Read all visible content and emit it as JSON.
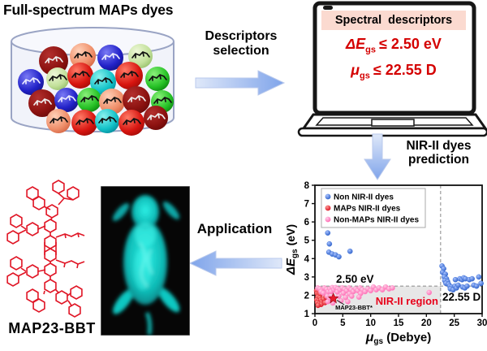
{
  "title": "Full-spectrum MAPs dyes",
  "steps": {
    "descriptors_line1": "Descriptors",
    "descriptors_line2": "selection",
    "prediction_line1": "NIR-II dyes",
    "prediction_line2": "prediction",
    "application": "Application"
  },
  "laptop": {
    "header": "Spectral descriptors",
    "criteria": [
      {
        "symbol": "ΔE",
        "sub": "gs",
        "op": "≤",
        "value": "2.50 eV"
      },
      {
        "symbol": "μ",
        "sub": "gs",
        "op": "≤",
        "value": "22.55 D"
      }
    ]
  },
  "molecule_label": "MAP23-BBT",
  "colors": {
    "accent_arrow": "#7fa4ea",
    "red_text": "#d40000",
    "nonNIR_blue": "#3a6fd8",
    "maps_red": "#e81c2c",
    "nonmaps_pink": "#ff85c2"
  },
  "chart_data": {
    "type": "scatter",
    "xlabel": {
      "main": "μ",
      "sub": "gs",
      "unit": " (Debye)"
    },
    "ylabel": {
      "main": "ΔE",
      "sub": "gs",
      "unit": " (eV)"
    },
    "xlim": [
      0,
      30
    ],
    "ylim": [
      1,
      8
    ],
    "xticks": [
      0,
      5,
      10,
      15,
      20,
      25,
      30
    ],
    "yticks": [
      1,
      2,
      3,
      4,
      5,
      6,
      7,
      8
    ],
    "grid": false,
    "legend_position": "top-left",
    "series": [
      {
        "name": "Non NIR-II dyes",
        "color": "#3a6fd8",
        "points": [
          [
            2.3,
            5.4
          ],
          [
            2.6,
            4.8
          ],
          [
            2.5,
            4.35
          ],
          [
            3.1,
            4.25
          ],
          [
            3.7,
            4.2
          ],
          [
            4.3,
            4.1
          ],
          [
            6.3,
            4.4
          ],
          [
            22.8,
            3.6
          ],
          [
            23.1,
            3.45
          ],
          [
            22.9,
            3.25
          ],
          [
            23.4,
            3.15
          ],
          [
            23.2,
            3.0
          ],
          [
            23.6,
            2.9
          ],
          [
            23.3,
            2.8
          ],
          [
            23.8,
            2.75
          ],
          [
            23.5,
            2.65
          ],
          [
            24.0,
            2.6
          ],
          [
            24.2,
            2.5
          ],
          [
            24.5,
            2.45
          ],
          [
            24.3,
            2.35
          ],
          [
            24.8,
            2.3
          ],
          [
            25.1,
            2.5
          ],
          [
            25.4,
            2.4
          ],
          [
            25.7,
            2.55
          ],
          [
            25.2,
            2.85
          ],
          [
            26.0,
            2.9
          ],
          [
            26.4,
            2.85
          ],
          [
            26.7,
            2.95
          ],
          [
            27.0,
            2.9
          ],
          [
            26.5,
            2.45
          ],
          [
            26.9,
            2.4
          ],
          [
            27.3,
            2.5
          ],
          [
            27.7,
            2.85
          ],
          [
            28.2,
            2.9
          ],
          [
            28.5,
            2.55
          ],
          [
            29.0,
            2.5
          ],
          [
            29.4,
            3.0
          ],
          [
            29.8,
            2.65
          ]
        ]
      },
      {
        "name": "MAPs NIR-II dyes",
        "color": "#e81c2c",
        "points": [
          [
            0.3,
            2.25
          ],
          [
            0.55,
            2.2
          ],
          [
            0.4,
            2.1
          ],
          [
            0.75,
            2.12
          ],
          [
            0.6,
            2.0
          ],
          [
            0.95,
            2.05
          ],
          [
            0.5,
            1.9
          ],
          [
            0.85,
            1.85
          ],
          [
            0.35,
            1.75
          ],
          [
            0.65,
            1.7
          ],
          [
            1.05,
            1.75
          ],
          [
            0.45,
            1.6
          ],
          [
            0.8,
            1.55
          ],
          [
            1.25,
            1.65
          ],
          [
            1.55,
            1.8
          ],
          [
            2.0,
            1.9
          ],
          [
            1.1,
            1.5
          ],
          [
            0.55,
            1.45
          ],
          [
            1.8,
            1.6
          ]
        ]
      },
      {
        "name": "Non-MAPs NIR-II dyes",
        "color": "#ff85c2",
        "points": [
          [
            0.5,
            2.4
          ],
          [
            0.9,
            2.35
          ],
          [
            1.3,
            2.28
          ],
          [
            1.7,
            2.4
          ],
          [
            2.1,
            2.33
          ],
          [
            1.1,
            2.2
          ],
          [
            1.5,
            2.12
          ],
          [
            2.4,
            2.2
          ],
          [
            2.7,
            2.35
          ],
          [
            3.1,
            2.42
          ],
          [
            2.9,
            2.2
          ],
          [
            3.4,
            2.3
          ],
          [
            3.7,
            2.42
          ],
          [
            4.1,
            2.35
          ],
          [
            4.0,
            2.18
          ],
          [
            4.5,
            2.3
          ],
          [
            4.9,
            2.4
          ],
          [
            5.3,
            2.33
          ],
          [
            5.1,
            2.12
          ],
          [
            5.7,
            2.25
          ],
          [
            6.1,
            2.4
          ],
          [
            6.5,
            2.3
          ],
          [
            6.2,
            2.08
          ],
          [
            6.9,
            2.2
          ],
          [
            7.3,
            2.35
          ],
          [
            7.7,
            2.25
          ],
          [
            8.1,
            2.4
          ],
          [
            8.5,
            2.3
          ],
          [
            8.2,
            2.1
          ],
          [
            9.0,
            2.2
          ],
          [
            9.5,
            2.35
          ],
          [
            10.0,
            2.25
          ],
          [
            10.5,
            2.45
          ],
          [
            11.0,
            2.3
          ],
          [
            11.5,
            2.4
          ],
          [
            12.1,
            2.3
          ],
          [
            12.7,
            2.45
          ],
          [
            13.3,
            2.35
          ],
          [
            13.9,
            2.4
          ],
          [
            2.2,
            1.95
          ],
          [
            2.6,
            1.85
          ],
          [
            3.2,
            1.9
          ],
          [
            4.3,
            1.95
          ],
          [
            5.5,
            1.88
          ],
          [
            6.6,
            1.95
          ],
          [
            7.9,
            1.9
          ],
          [
            2.3,
            1.65
          ],
          [
            3.2,
            1.58
          ],
          [
            4.7,
            1.7
          ],
          [
            5.9,
            1.65
          ],
          [
            20.5,
            2.15
          ]
        ]
      }
    ],
    "star": {
      "x": 3.3,
      "y": 1.85,
      "label": "MAP23-BBT*",
      "color": "#e81c2c"
    },
    "threshold_y": {
      "value": 2.5,
      "label": "2.50 eV"
    },
    "threshold_x": {
      "value": 22.55,
      "label": "22.55 D"
    },
    "region_label": "NIR-II region",
    "region": "shaded area y<2.5 and x<22.55"
  }
}
